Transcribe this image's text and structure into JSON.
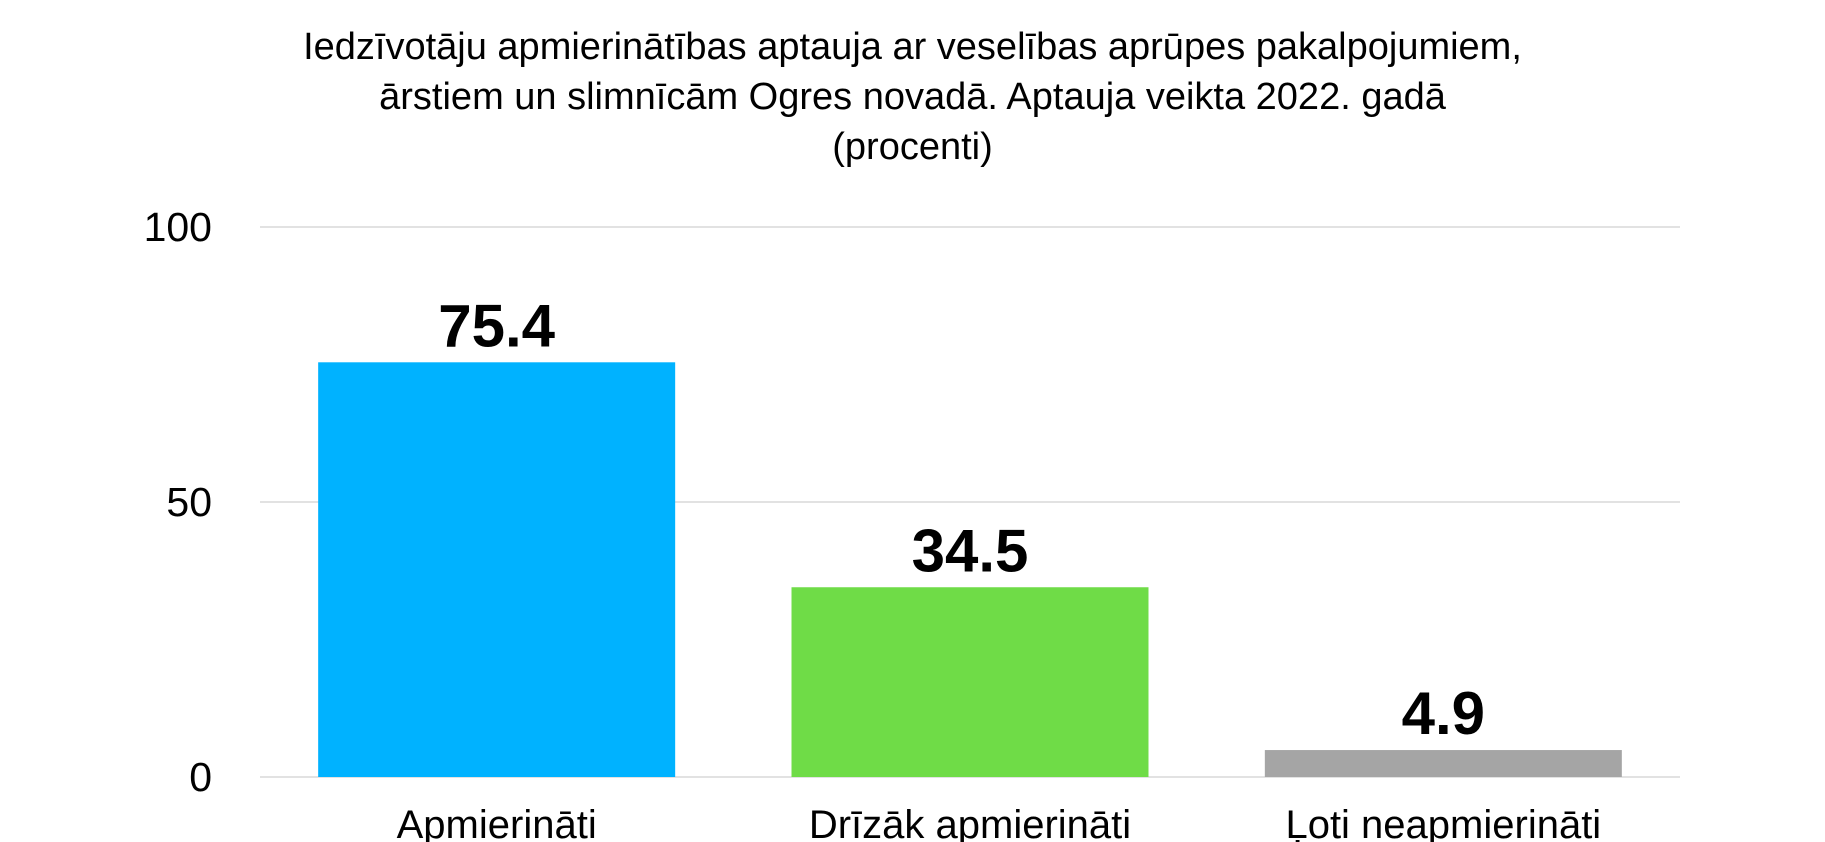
{
  "chart_data": {
    "type": "bar",
    "title_lines": [
      "Iedzīvotāju apmierinātības aptauja ar veselības aprūpes pakalpojumiem,",
      "ārstiem un slimnīcām Ogres novadā. Aptauja veikta 2022. gadā",
      "(procenti)"
    ],
    "categories": [
      "Apmierināti",
      "Drīzāk apmierināti",
      "Ļoti neapmierināti"
    ],
    "values": [
      75.4,
      34.5,
      4.9
    ],
    "value_labels": [
      "75.4",
      "34.5",
      "4.9"
    ],
    "colors": [
      "#00b2ff",
      "#6fdc47",
      "#a5a5a5"
    ],
    "yticks": [
      0,
      50,
      100
    ],
    "ytick_labels": [
      "0",
      "50",
      "100"
    ],
    "ylim": [
      0,
      100
    ],
    "grid": true,
    "xlabel": "",
    "ylabel": ""
  }
}
